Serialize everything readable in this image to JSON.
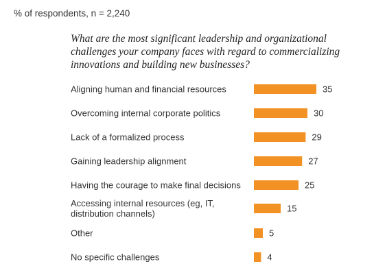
{
  "header": {
    "note": "% of respondents, n = 2,240",
    "question": "What are the most significant leadership and organizational challenges your company faces with regard to commercializing innovations and building new businesses?"
  },
  "chart_data": {
    "type": "bar",
    "orientation": "horizontal",
    "bar_color": "#f39224",
    "categories": [
      [
        "Aligning human and financial resources"
      ],
      [
        "Overcoming internal corporate politics"
      ],
      [
        "Lack of a formalized process"
      ],
      [
        "Gaining leadership alignment"
      ],
      [
        "Having the courage to make final decisions"
      ],
      [
        "Accessing internal resources (eg, IT,",
        "distribution channels)"
      ],
      [
        "Other"
      ],
      [
        "No specific challenges"
      ]
    ],
    "values": [
      35,
      30,
      29,
      27,
      25,
      15,
      5,
      4
    ],
    "value_labels": [
      "35",
      "30",
      "29",
      "27",
      "25",
      "15",
      "5",
      "4"
    ],
    "xlim": [
      0,
      35
    ],
    "grid": false,
    "legend": "none"
  }
}
